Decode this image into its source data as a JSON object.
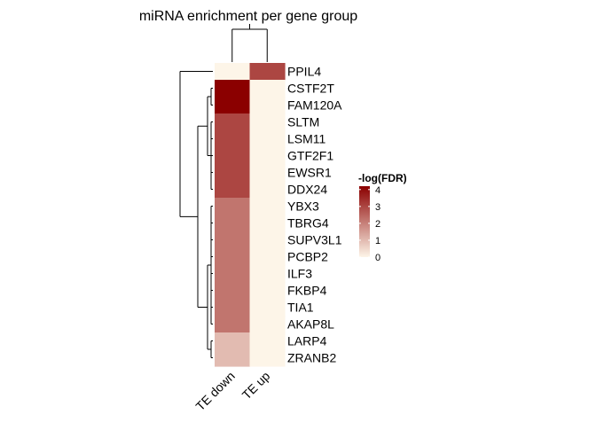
{
  "chart_data": {
    "type": "heatmap",
    "title": "miRNA enrichment per gene group",
    "rows": [
      "PPIL4",
      "CSTF2T",
      "FAM120A",
      "SLTM",
      "LSM11",
      "GTF2F1",
      "EWSR1",
      "DDX24",
      "YBX3",
      "TBRG4",
      "SUPV3L1",
      "PCBP2",
      "ILF3",
      "FKBP4",
      "TIA1",
      "AKAP8L",
      "LARP4",
      "ZRANB2"
    ],
    "columns": [
      "TE down",
      "TE up"
    ],
    "values": [
      [
        0,
        3.0
      ],
      [
        4.2,
        0
      ],
      [
        4.2,
        0
      ],
      [
        3.0,
        0
      ],
      [
        3.0,
        0
      ],
      [
        3.0,
        0
      ],
      [
        3.0,
        0
      ],
      [
        3.0,
        0
      ],
      [
        2.2,
        0
      ],
      [
        2.2,
        0
      ],
      [
        2.2,
        0
      ],
      [
        2.2,
        0
      ],
      [
        2.2,
        0
      ],
      [
        2.2,
        0
      ],
      [
        2.2,
        0
      ],
      [
        2.2,
        0
      ],
      [
        1.0,
        0
      ],
      [
        1.0,
        0
      ]
    ],
    "legend": {
      "title": "-log(FDR)",
      "ticks": [
        0,
        1,
        2,
        3,
        4
      ],
      "range": [
        0,
        4.2
      ],
      "colors": {
        "low": "#fdf5e8",
        "high": "#8b0000"
      }
    },
    "row_dendrogram": true,
    "column_dendrogram": true
  }
}
